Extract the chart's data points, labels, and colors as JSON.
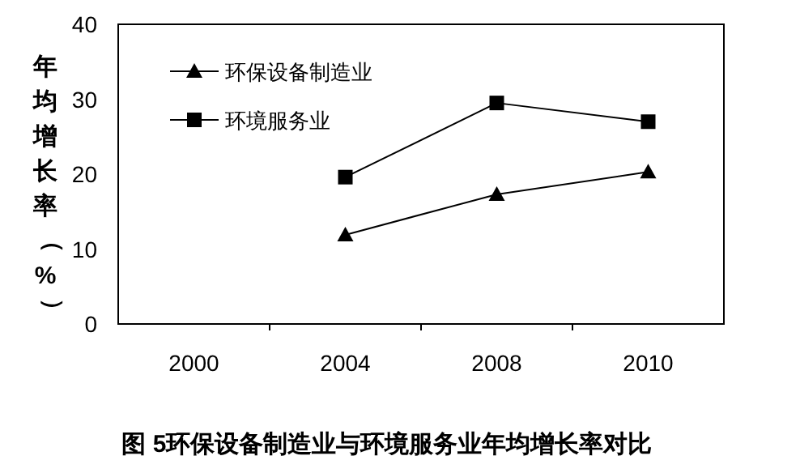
{
  "chart_data": {
    "type": "line",
    "title": "图 5环保设备制造业与环境服务业年均增长率对比",
    "ylabel": "年均增长率（%）",
    "categories": [
      "2000",
      "2004",
      "2008",
      "2010"
    ],
    "series": [
      {
        "name": "环保设备制造业",
        "color": "#000000",
        "marker": "triangle",
        "values": [
          null,
          11.9,
          17.3,
          20.3
        ]
      },
      {
        "name": "环境服务业",
        "color": "#000000",
        "marker": "square",
        "values": [
          null,
          19.6,
          29.5,
          27.0
        ]
      }
    ],
    "ylim": [
      0,
      40
    ],
    "yticks": [
      0,
      10,
      20,
      30,
      40
    ],
    "legend": "top left",
    "grid": false
  }
}
